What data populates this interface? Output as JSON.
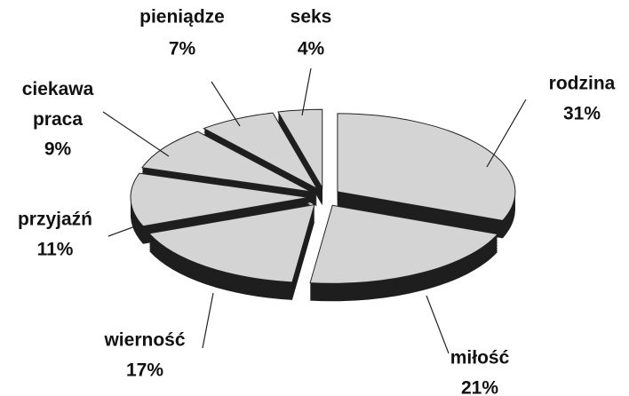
{
  "chart_data": {
    "type": "pie3d",
    "categories": [
      "rodzina",
      "miłość",
      "wierność",
      "przyjaźń",
      "ciekawa praca",
      "pieniądze",
      "seks"
    ],
    "values": [
      31,
      21,
      17,
      11,
      9,
      7,
      4
    ],
    "value_labels": [
      "31%",
      "21%",
      "17%",
      "11%",
      "9%",
      "7%",
      "4%"
    ],
    "color": "#d4d4d4",
    "side_color": "#1e1e1e"
  }
}
